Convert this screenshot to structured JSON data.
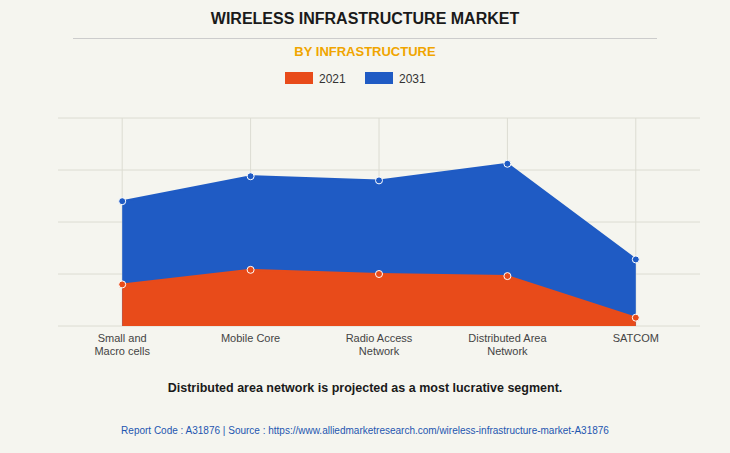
{
  "chart_data": {
    "type": "area",
    "title": "WIRELESS INFRASTRUCTURE MARKET",
    "subtitle": "BY INFRASTRUCTURE",
    "categories": [
      "Small and\nMacro cells",
      "Mobile Core",
      "Radio Access\nNetwork",
      "Distributed Area\nNetwork",
      "SATCOM"
    ],
    "series": [
      {
        "name": "2021",
        "color": "#e84b1a",
        "values": [
          0.2,
          0.27,
          0.25,
          0.24,
          0.04
        ]
      },
      {
        "name": "2031",
        "color": "#1f5bc4",
        "values": [
          0.6,
          0.72,
          0.7,
          0.78,
          0.32
        ]
      }
    ],
    "ylim": [
      0,
      1.0
    ],
    "yticks": [
      0,
      0.25,
      0.5,
      0.75,
      1.0
    ],
    "grid": true,
    "tick_labels": "x",
    "marker": "circle",
    "legend": "top",
    "annotations": [
      "Distributed area network is projected as a most lucrative segment.",
      "Report Code : A31876  |  Source : https://www.alliedmarketresearch.com/wireless-infrastructure-market-A31876"
    ]
  }
}
